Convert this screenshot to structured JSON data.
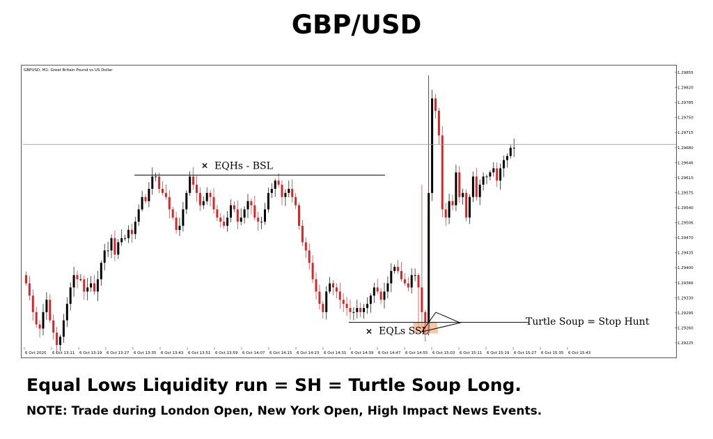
{
  "title": "GBP/USD",
  "caption": "Equal Lows Liquidity run = SH = Turtle Soup Long.",
  "note": "NOTE: Trade during London Open, New York Open, High Impact News Events.",
  "chart_data": {
    "type": "candlestick",
    "header": "GBPUSD, M1: Great Britain Pound vs US Dollar",
    "current_price_label": "1.29698",
    "y_ticks": [
      "1.29855",
      "1.29820",
      "1.29785",
      "1.29750",
      "1.29715",
      "1.29680",
      "1.29646",
      "1.29610",
      "1.29575",
      "1.29540",
      "1.29506",
      "1.29470",
      "1.29435",
      "1.29400",
      "1.29366",
      "1.29330",
      "1.29295",
      "1.29260",
      "1.29225"
    ],
    "x_ticks": [
      "6 Oct 2020",
      "6 Oct 13:11",
      "6 Oct 13:19",
      "6 Oct 13:27",
      "6 Oct 13:35",
      "6 Oct 13:43",
      "6 Oct 13:51",
      "6 Oct 13:59",
      "6 Oct 14:07",
      "6 Oct 14:15",
      "6 Oct 14:23",
      "6 Oct 14:31",
      "6 Oct 14:39",
      "6 Oct 14:47",
      "6 Oct 14:55",
      "6 Oct 15:03",
      "6 Oct 15:11",
      "6 Oct 15:19",
      "6 Oct 15:27",
      "6 Oct 15:35",
      "6 Oct 15:43"
    ],
    "ylim": [
      1.29205,
      1.2988
    ],
    "up_color": "#000000",
    "down_color": "#d62728",
    "closes": [
      1.2936,
      1.2933,
      1.2929,
      1.2926,
      1.2925,
      1.2929,
      1.2932,
      1.2927,
      1.2924,
      1.2921,
      1.2923,
      1.2927,
      1.2931,
      1.2935,
      1.2938,
      1.2937,
      1.2937,
      1.2934,
      1.2935,
      1.2936,
      1.2934,
      1.2937,
      1.2941,
      1.2944,
      1.2944,
      1.2947,
      1.2943,
      1.2946,
      1.2947,
      1.2947,
      1.2949,
      1.2948,
      1.2951,
      1.2954,
      1.2957,
      1.2956,
      1.2959,
      1.2962,
      1.2962,
      1.2959,
      1.2958,
      1.2957,
      1.2954,
      1.2952,
      1.2949,
      1.295,
      1.2954,
      1.2958,
      1.2962,
      1.296,
      1.2958,
      1.2955,
      1.2956,
      1.2958,
      1.2957,
      1.2954,
      1.2952,
      1.2951,
      1.295,
      1.2952,
      1.2955,
      1.2954,
      1.2951,
      1.2952,
      1.2954,
      1.2956,
      1.2955,
      1.2952,
      1.2951,
      1.2951,
      1.2954,
      1.2958,
      1.2959,
      1.2961,
      1.296,
      1.2957,
      1.2958,
      1.2959,
      1.2957,
      1.2955,
      1.295,
      1.2946,
      1.2944,
      1.2941,
      1.2937,
      1.2934,
      1.2931,
      1.2929,
      1.2934,
      1.2936,
      1.2935,
      1.2934,
      1.2932,
      1.2931,
      1.293,
      1.2929,
      1.2929,
      1.293,
      1.2929,
      1.293,
      1.2931,
      1.2933,
      1.2935,
      1.2934,
      1.2932,
      1.2934,
      1.2936,
      1.2939,
      1.294,
      1.2939,
      1.2937,
      1.2936,
      1.2935,
      1.2938,
      1.2938,
      1.2935,
      1.2929,
      1.2924,
      1.2958,
      1.2981,
      1.2978,
      1.2972,
      1.2954,
      1.2952,
      1.2956,
      1.2955,
      1.2963,
      1.2957,
      1.2958,
      1.2952,
      1.2957,
      1.2962,
      1.2957,
      1.296,
      1.2962,
      1.2962,
      1.2963,
      1.2964,
      1.2961,
      1.2964,
      1.2966,
      1.2967,
      1.2969,
      1.2969
    ],
    "annotations": {
      "eqh_label": "EQHs - BSL",
      "eql_label": "EQLs SSL",
      "turtle_label": "Turtle Soup = Stop Hunt",
      "eqh_price": 1.2962,
      "eql_price": 1.29265,
      "current_price": 1.29698
    }
  }
}
